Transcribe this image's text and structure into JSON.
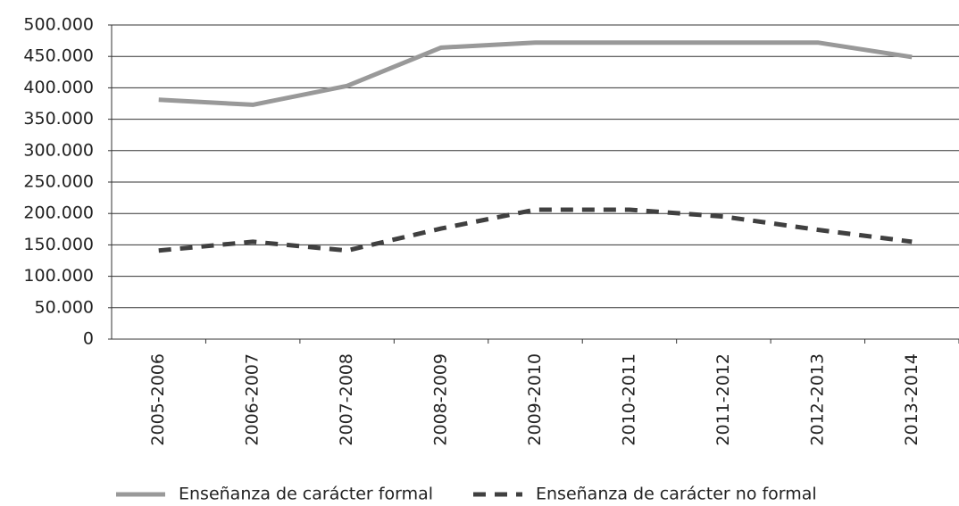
{
  "chart_data": {
    "type": "line",
    "categories": [
      "2005-2006",
      "2006-2007",
      "2007-2008",
      "2008-2009",
      "2009-2010",
      "2010-2011",
      "2011-2012",
      "2012-2013",
      "2013-2014"
    ],
    "series": [
      {
        "name": "Enseñanza de carácter formal",
        "color": "#999999",
        "style": "solid",
        "values": [
          381000,
          373000,
          403000,
          464000,
          472000,
          472000,
          472000,
          472000,
          449000
        ]
      },
      {
        "name": "Enseñanza de carácter no formal",
        "color": "#404040",
        "style": "dashed",
        "values": [
          141000,
          155000,
          141000,
          176000,
          206000,
          206000,
          195000,
          174000,
          155000
        ]
      }
    ],
    "ylim": [
      0,
      500000
    ],
    "yticks": [
      0,
      {
        "value": 50000,
        "label": "50.000"
      },
      {
        "value": 100000,
        "label": "100.000"
      },
      {
        "value": 150000,
        "label": "150.000"
      },
      {
        "value": 200000,
        "label": "200.000"
      },
      {
        "value": 250000,
        "label": "250.000"
      },
      {
        "value": 300000,
        "label": "300.000"
      },
      {
        "value": 350000,
        "label": "350.000"
      },
      {
        "value": 400000,
        "label": "400.000"
      },
      {
        "value": 450000,
        "label": "450.000"
      },
      {
        "value": 500000,
        "label": "500.000"
      }
    ],
    "grid": true,
    "legend": "bottom"
  }
}
